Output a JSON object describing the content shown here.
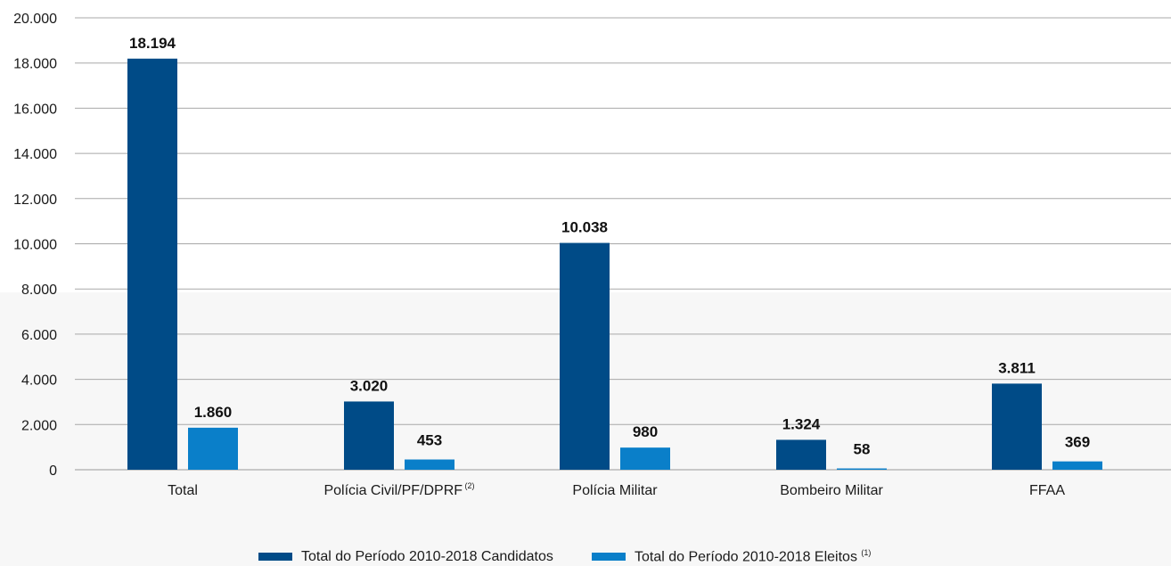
{
  "chart_data": {
    "type": "bar",
    "categories": [
      "Total",
      "Polícia Civil/PF/DPRF",
      "Polícia Militar",
      "Bombeiro Militar",
      "FFAA"
    ],
    "category_superscripts": [
      "",
      "(2)",
      "",
      "",
      ""
    ],
    "series": [
      {
        "name": "Total do Período 2010-2018 Candidatos",
        "values": [
          18194,
          3020,
          10038,
          1324,
          3811
        ],
        "labels": [
          "18.194",
          "3.020",
          "10.038",
          "1.324",
          "3.811"
        ],
        "color": "#004b87"
      },
      {
        "name": "Total do Período 2010-2018 Eleitos",
        "name_superscript": "(1)",
        "values": [
          1860,
          453,
          980,
          58,
          369
        ],
        "labels": [
          "1.860",
          "453",
          "980",
          "58",
          "369"
        ],
        "color": "#0a7fc9"
      }
    ],
    "ylim": [
      0,
      20000
    ],
    "yticks": [
      0,
      2000,
      4000,
      6000,
      8000,
      10000,
      12000,
      14000,
      16000,
      18000,
      20000
    ],
    "ytick_labels": [
      "0",
      "2.000",
      "4.000",
      "6.000",
      "8.000",
      "10.000",
      "12.000",
      "14.000",
      "16.000",
      "18.000",
      "20.000"
    ],
    "grid": true,
    "legend_position": "bottom"
  }
}
